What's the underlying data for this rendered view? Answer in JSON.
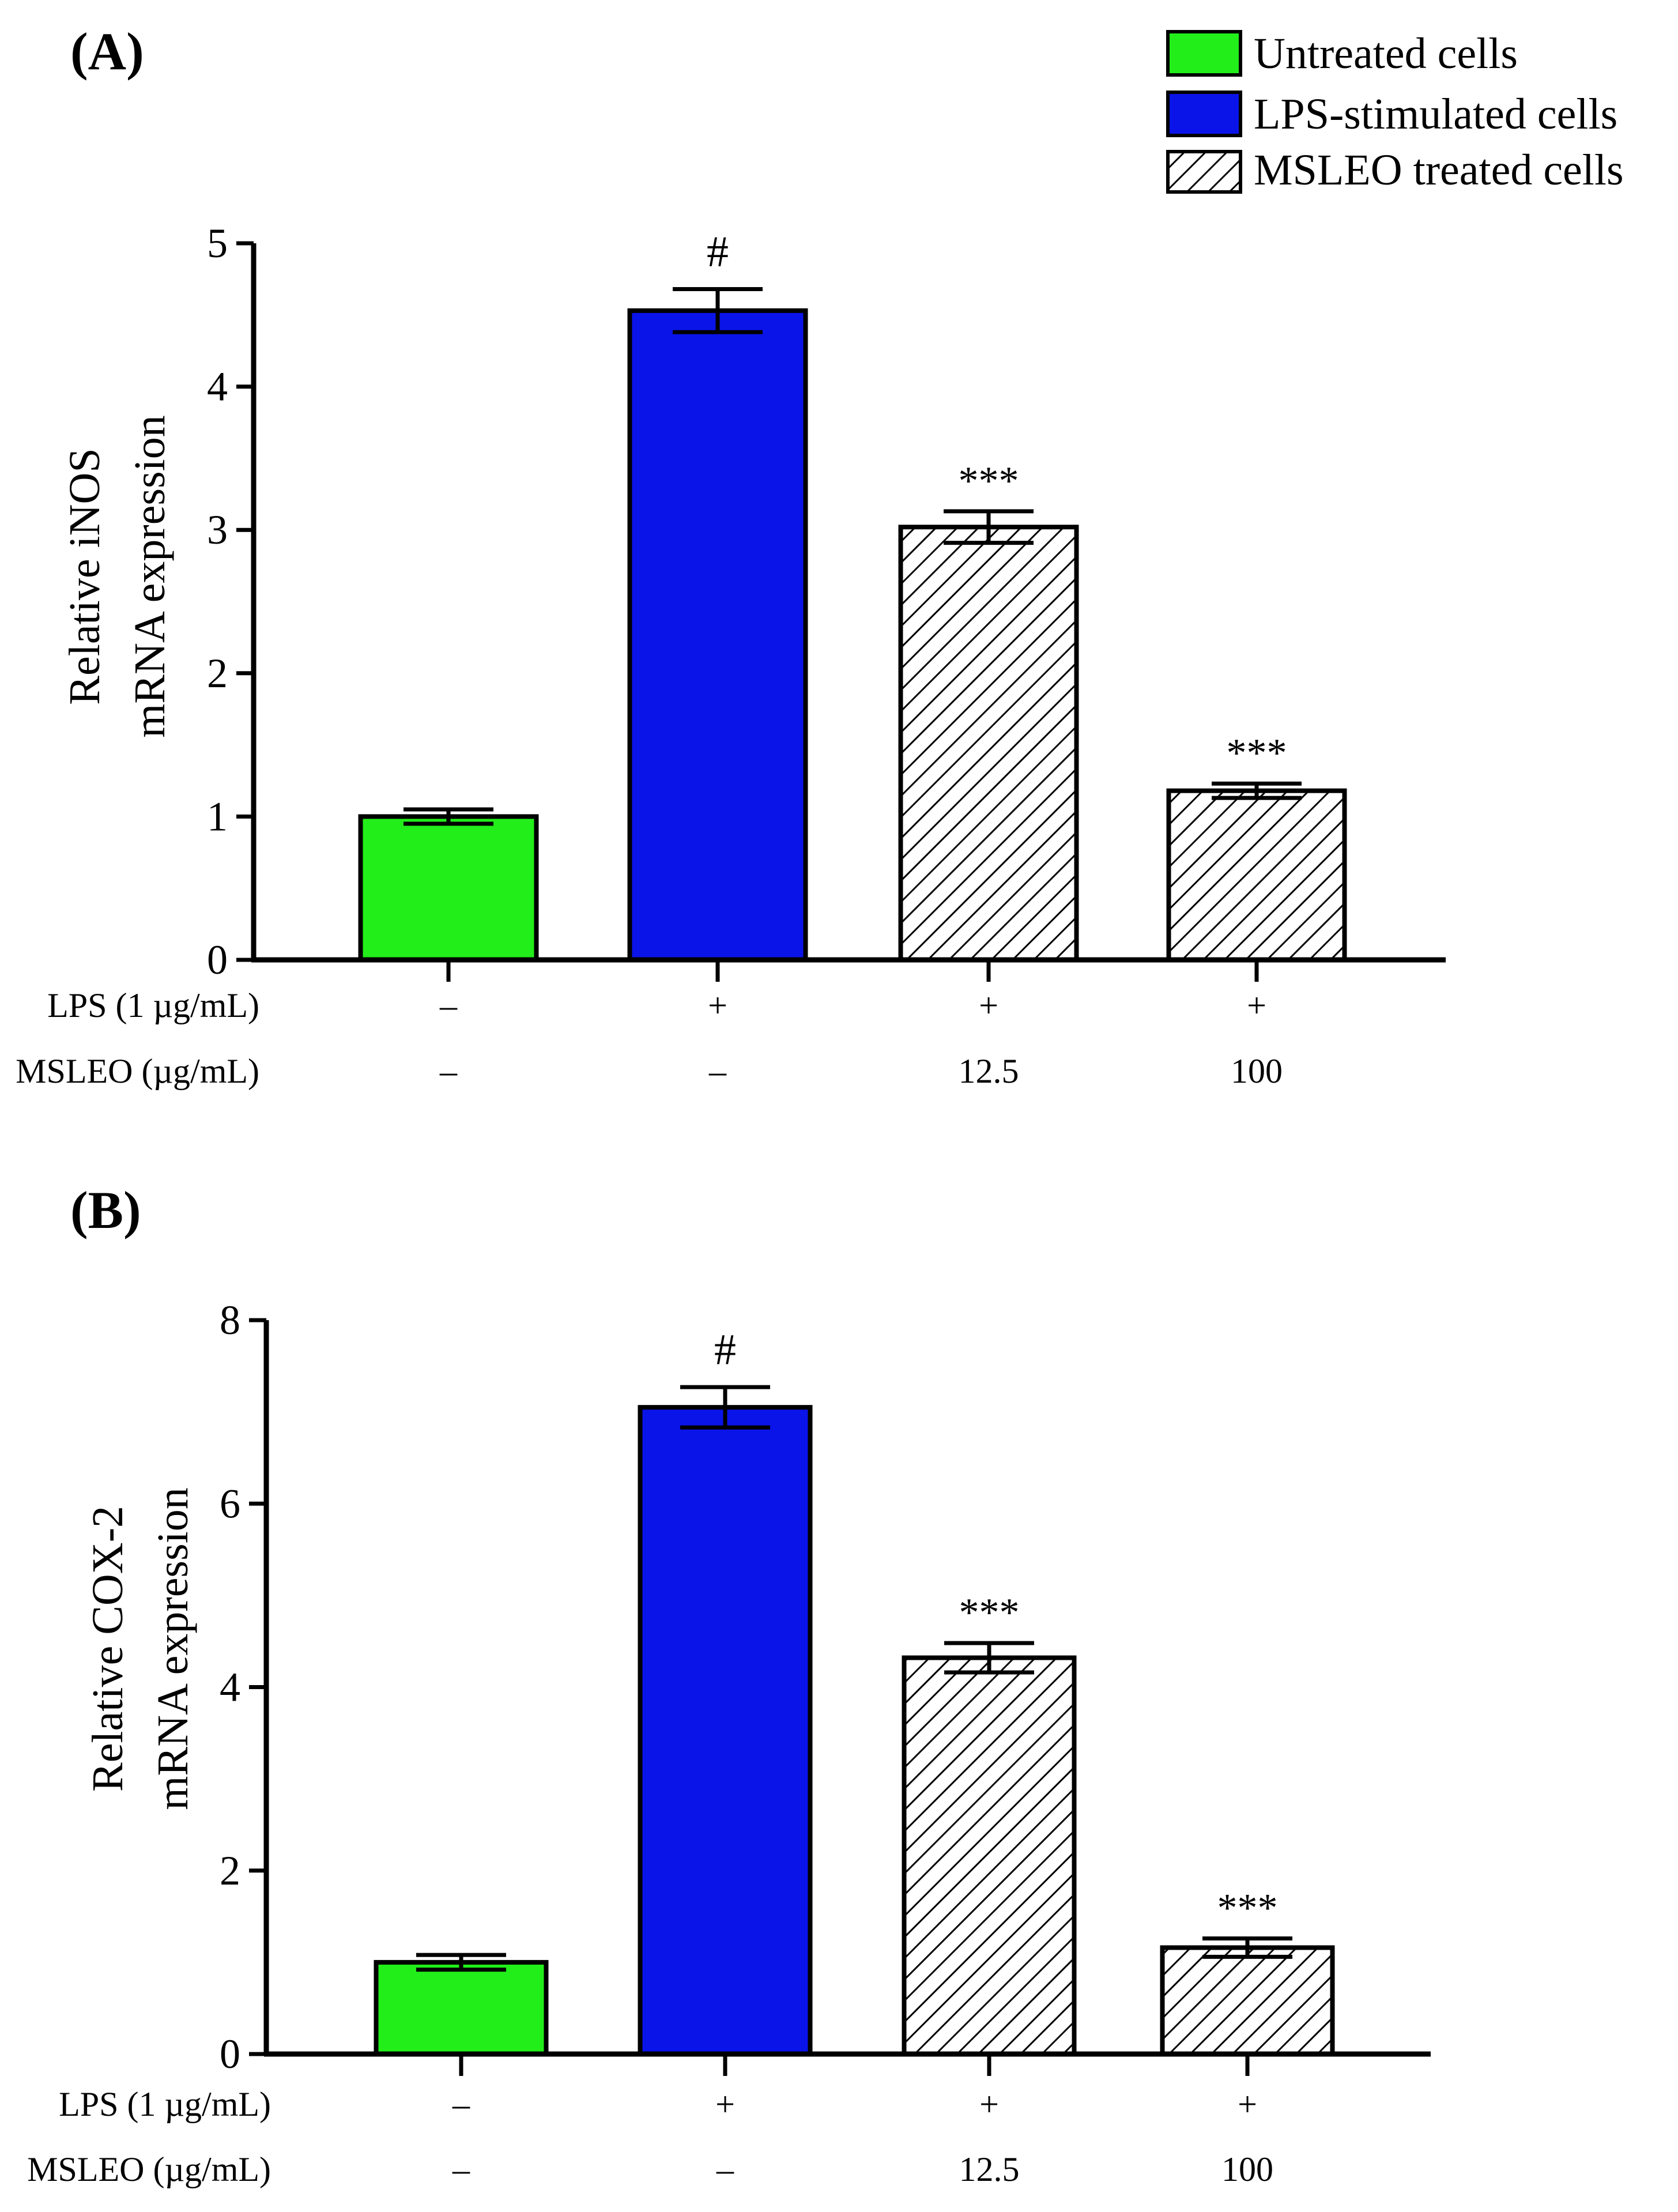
{
  "legend": {
    "items": [
      {
        "label": "Untreated cells",
        "style": "solid",
        "color": "#22ee1a"
      },
      {
        "label": "LPS-stimulated cells",
        "style": "solid",
        "color": "#0a14e8"
      },
      {
        "label": "MSLEO treated cells",
        "style": "hatched",
        "color": "#ffffff"
      }
    ]
  },
  "chart_data": [
    {
      "panel_label": "(A)",
      "type": "bar",
      "title": "",
      "xlabel": "",
      "ylabel_lines": [
        "Relative iNOS",
        "mRNA expression"
      ],
      "ylim": [
        0,
        5
      ],
      "yticks": [
        0,
        1,
        2,
        3,
        4,
        5
      ],
      "categories": [
        "Untreated cells",
        "LPS-stimulated cells",
        "MSLEO 12.5 µg/mL",
        "MSLEO 100 µg/mL"
      ],
      "values": [
        1.0,
        4.53,
        3.02,
        1.18
      ],
      "errors": [
        0.05,
        0.15,
        0.11,
        0.05
      ],
      "annotations": [
        "",
        "#",
        "***",
        "***"
      ],
      "conditions": [
        {
          "label": "LPS (1 µg/mL)",
          "values": [
            "–",
            "+",
            "+",
            "+"
          ]
        },
        {
          "label": "MSLEO (µg/mL)",
          "values": [
            "–",
            "–",
            "12.5",
            "100"
          ]
        }
      ]
    },
    {
      "panel_label": "(B)",
      "type": "bar",
      "title": "",
      "xlabel": "",
      "ylabel_lines": [
        "Relative COX-2",
        "mRNA expression"
      ],
      "ylim": [
        0,
        8
      ],
      "yticks": [
        0,
        2,
        4,
        6,
        8
      ],
      "categories": [
        "Untreated cells",
        "LPS-stimulated cells",
        "MSLEO 12.5 µg/mL",
        "MSLEO 100 µg/mL"
      ],
      "values": [
        1.0,
        7.05,
        4.32,
        1.16
      ],
      "errors": [
        0.08,
        0.22,
        0.16,
        0.1
      ],
      "annotations": [
        "",
        "#",
        "***",
        "***"
      ],
      "conditions": [
        {
          "label": "LPS (1 µg/mL)",
          "values": [
            "–",
            "+",
            "+",
            "+"
          ]
        },
        {
          "label": "MSLEO (µg/mL)",
          "values": [
            "–",
            "–",
            "12.5",
            "100"
          ]
        }
      ]
    }
  ]
}
